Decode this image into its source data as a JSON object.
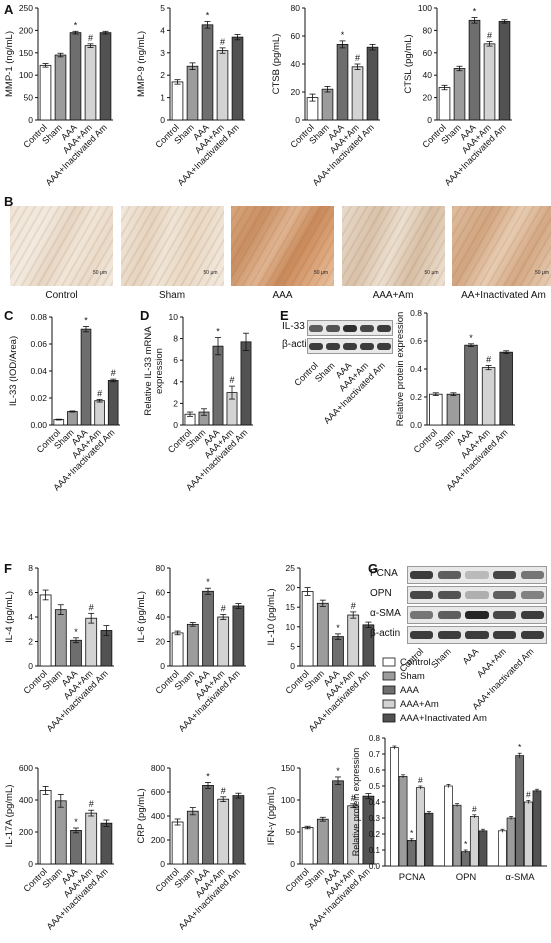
{
  "panels": {
    "A": "A",
    "B": "B",
    "C": "C",
    "D": "D",
    "E": "E",
    "F": "F",
    "G": "G"
  },
  "groups": [
    "Control",
    "Sham",
    "AAA",
    "AAA+Am",
    "AAA+Inactivated Am"
  ],
  "colors": {
    "Control": "#ffffff",
    "Sham": "#9c9c9c",
    "AAA": "#6e6e6e",
    "AAA+Am": "#d3d3d3",
    "AAA+Inactivated Am": "#525252"
  },
  "ihc_labels": [
    "Control",
    "Sham",
    "AAA",
    "AAA+Am",
    "AA+Inactivated Am"
  ],
  "scale_bar": "50 μm",
  "wb_E": {
    "bands": [
      "IL-33",
      "β-actin"
    ]
  },
  "wb_G": {
    "bands": [
      "PCNA",
      "OPN",
      "α-SMA",
      "β-actin"
    ]
  },
  "chart_data": [
    {
      "id": "A1",
      "type": "bar",
      "ylabel": "MMP-1 (ng/mL)",
      "ylim": [
        0,
        250
      ],
      "yticks": [
        0,
        50,
        100,
        150,
        200,
        250
      ],
      "values": [
        122,
        145,
        195,
        166,
        195
      ],
      "errors": [
        4,
        4,
        3,
        4,
        3
      ],
      "marks": [
        "",
        "",
        "*",
        "#",
        ""
      ]
    },
    {
      "id": "A2",
      "type": "bar",
      "ylabel": "MMP-9 (ng/mL)",
      "ylim": [
        0,
        5
      ],
      "yticks": [
        0,
        1,
        2,
        3,
        4,
        5
      ],
      "values": [
        1.7,
        2.4,
        4.25,
        3.1,
        3.7
      ],
      "errors": [
        0.1,
        0.15,
        0.15,
        0.12,
        0.12
      ],
      "marks": [
        "",
        "",
        "*",
        "#",
        ""
      ]
    },
    {
      "id": "A3",
      "type": "bar",
      "ylabel": "CTSB (pg/mL)",
      "ylim": [
        0,
        80
      ],
      "yticks": [
        0,
        20,
        40,
        60,
        80
      ],
      "values": [
        16,
        22,
        54,
        38,
        52
      ],
      "errors": [
        2.5,
        2,
        2.5,
        2,
        2
      ],
      "marks": [
        "",
        "",
        "*",
        "#",
        ""
      ]
    },
    {
      "id": "A4",
      "type": "bar",
      "ylabel": "CTSL (pg/mL)",
      "ylim": [
        0,
        100
      ],
      "yticks": [
        0,
        20,
        40,
        60,
        80,
        100
      ],
      "values": [
        29,
        46,
        89,
        68,
        88
      ],
      "errors": [
        2,
        2,
        2.5,
        2,
        1.5
      ],
      "marks": [
        "",
        "",
        "*",
        "#",
        ""
      ]
    },
    {
      "id": "C",
      "type": "bar",
      "ylabel": "IL-33 (IOD/Area)",
      "ylim": [
        0,
        0.08
      ],
      "yticks": [
        0.0,
        0.02,
        0.04,
        0.06,
        0.08
      ],
      "values": [
        0.004,
        0.01,
        0.071,
        0.018,
        0.033
      ],
      "errors": [
        0.0003,
        0.0004,
        0.002,
        0.001,
        0.001
      ],
      "marks": [
        "",
        "",
        "*",
        "#",
        "#"
      ]
    },
    {
      "id": "D",
      "type": "bar",
      "ylabel": "Relative IL-33 mRNA expression",
      "ylim": [
        0,
        10
      ],
      "yticks": [
        0,
        2,
        4,
        6,
        8,
        10
      ],
      "values": [
        1.0,
        1.2,
        7.3,
        3.0,
        7.7
      ],
      "errors": [
        0.2,
        0.3,
        0.8,
        0.6,
        0.8
      ],
      "marks": [
        "",
        "",
        "*",
        "#",
        ""
      ]
    },
    {
      "id": "E",
      "type": "bar",
      "ylabel": "Relative protein expression",
      "ylim": [
        0,
        0.8
      ],
      "yticks": [
        0.0,
        0.2,
        0.4,
        0.6,
        0.8
      ],
      "values": [
        0.22,
        0.22,
        0.57,
        0.41,
        0.52
      ],
      "errors": [
        0.01,
        0.01,
        0.01,
        0.015,
        0.01
      ],
      "marks": [
        "",
        "",
        "*",
        "#",
        ""
      ]
    },
    {
      "id": "F1",
      "type": "bar",
      "ylabel": "IL-4 (pg/mL)",
      "ylim": [
        0,
        8
      ],
      "yticks": [
        0,
        2,
        4,
        6,
        8
      ],
      "values": [
        5.8,
        4.6,
        2.1,
        3.9,
        2.9
      ],
      "errors": [
        0.4,
        0.4,
        0.2,
        0.4,
        0.4
      ],
      "marks": [
        "",
        "",
        "*",
        "#",
        ""
      ]
    },
    {
      "id": "F2",
      "type": "bar",
      "ylabel": "IL-6 (pg/mL)",
      "ylim": [
        0,
        80
      ],
      "yticks": [
        0,
        20,
        40,
        60,
        80
      ],
      "values": [
        27,
        34,
        61,
        40,
        49
      ],
      "errors": [
        1.5,
        1.5,
        2.5,
        2,
        2
      ],
      "marks": [
        "",
        "",
        "*",
        "#",
        ""
      ]
    },
    {
      "id": "F3",
      "type": "bar",
      "ylabel": "IL-10 (pg/mL)",
      "ylim": [
        0,
        25
      ],
      "yticks": [
        0,
        5,
        10,
        15,
        20,
        25
      ],
      "values": [
        19,
        16,
        7.5,
        13,
        10.5
      ],
      "errors": [
        1,
        0.8,
        0.7,
        0.8,
        0.7
      ],
      "marks": [
        "",
        "",
        "*",
        "#",
        ""
      ]
    },
    {
      "id": "F4",
      "type": "bar",
      "ylabel": "IL-17A (pg/mL)",
      "ylim": [
        0,
        600
      ],
      "yticks": [
        0,
        200,
        400,
        600
      ],
      "values": [
        460,
        395,
        210,
        318,
        255
      ],
      "errors": [
        25,
        40,
        15,
        18,
        20
      ],
      "marks": [
        "",
        "",
        "*",
        "#",
        ""
      ]
    },
    {
      "id": "F5",
      "type": "bar",
      "ylabel": "CRP (pg/mL)",
      "ylim": [
        0,
        800
      ],
      "yticks": [
        0,
        200,
        400,
        600,
        800
      ],
      "values": [
        350,
        440,
        655,
        540,
        570
      ],
      "errors": [
        25,
        30,
        25,
        20,
        20
      ],
      "marks": [
        "",
        "",
        "*",
        "#",
        ""
      ]
    },
    {
      "id": "F6",
      "type": "bar",
      "ylabel": "IFN-γ (pg/mL)",
      "ylim": [
        0,
        150
      ],
      "yticks": [
        0,
        50,
        100,
        150
      ],
      "values": [
        57,
        70,
        130,
        91,
        106
      ],
      "errors": [
        2,
        3,
        6,
        3,
        4
      ],
      "marks": [
        "",
        "",
        "*",
        "#",
        ""
      ]
    },
    {
      "id": "G",
      "type": "bar",
      "ylabel": "Relative protein expression",
      "ylim": [
        0,
        0.8
      ],
      "yticks": [
        0.0,
        0.1,
        0.2,
        0.3,
        0.4,
        0.5,
        0.6,
        0.7,
        0.8
      ],
      "categories": [
        "PCNA",
        "OPN",
        "α-SMA"
      ],
      "series": [
        {
          "name": "Control",
          "values": [
            0.74,
            0.5,
            0.22
          ],
          "errors": [
            0.01,
            0.01,
            0.01
          ]
        },
        {
          "name": "Sham",
          "values": [
            0.56,
            0.38,
            0.3
          ],
          "errors": [
            0.01,
            0.01,
            0.01
          ]
        },
        {
          "name": "AAA",
          "values": [
            0.16,
            0.09,
            0.69
          ],
          "errors": [
            0.01,
            0.01,
            0.015
          ]
        },
        {
          "name": "AAA+Am",
          "values": [
            0.49,
            0.31,
            0.4
          ],
          "errors": [
            0.01,
            0.01,
            0.01
          ]
        },
        {
          "name": "AAA+Inactivated Am",
          "values": [
            0.33,
            0.22,
            0.47
          ],
          "errors": [
            0.01,
            0.01,
            0.01
          ]
        }
      ],
      "marks": [
        [
          "",
          "",
          "*",
          "#",
          ""
        ],
        [
          "",
          "",
          "*",
          "#",
          ""
        ],
        [
          "",
          "",
          "*",
          "#",
          ""
        ]
      ]
    }
  ]
}
